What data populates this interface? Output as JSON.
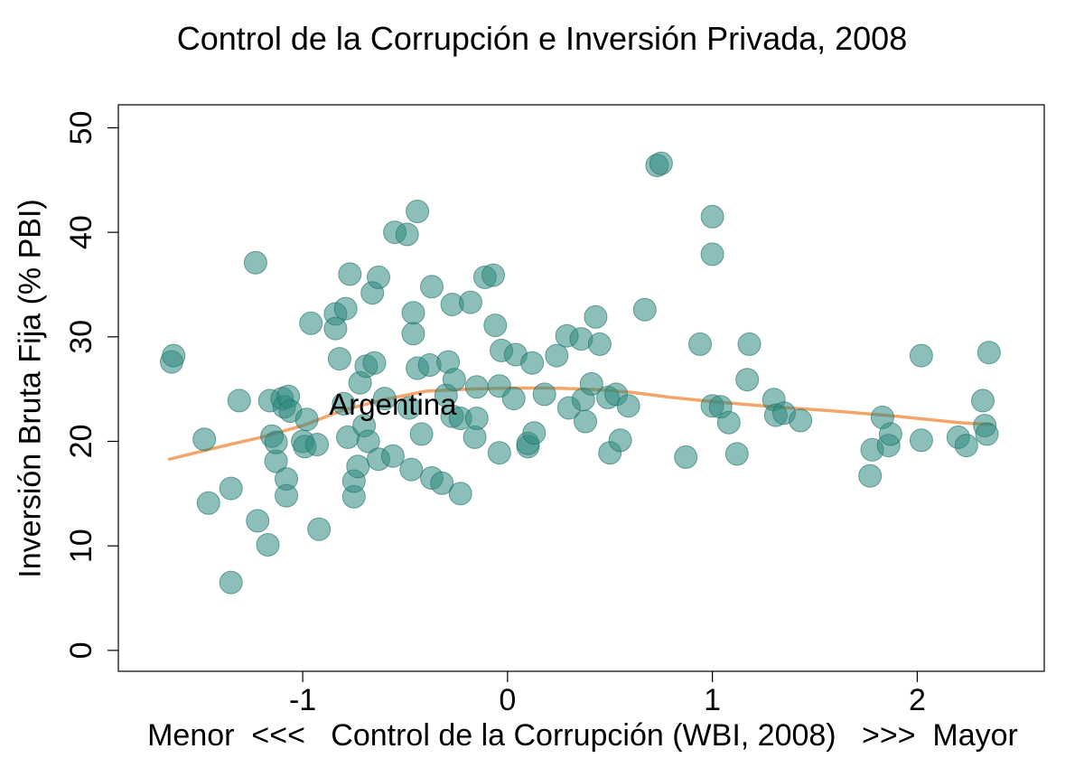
{
  "chart_data": {
    "type": "scatter",
    "title": "Control de la Corrupción e Inversión Privada, 2008",
    "xlabel": "Menor  <<<   Control de la Corrupción (WBI, 2008)   >>>  Mayor",
    "ylabel": "Inversión Bruta Fija (% PBI)",
    "xlim": [
      -1.9,
      2.62
    ],
    "ylim": [
      -2,
      52.2
    ],
    "x_ticks": [
      -1,
      0,
      1,
      2
    ],
    "x_tick_labels": [
      "-1",
      "0",
      "1",
      "2"
    ],
    "y_ticks": [
      0,
      10,
      20,
      30,
      40,
      50
    ],
    "y_tick_labels": [
      "0",
      "10",
      "20",
      "30",
      "40",
      "50"
    ],
    "grid": false,
    "point_color": "#2e8b80",
    "point_edge_color": "#1f6e66",
    "smooth_color": "#f4a56a",
    "annotations": [
      {
        "text": "Argentina",
        "x": -0.56,
        "y": 23.5
      }
    ],
    "points": [
      {
        "x": -1.64,
        "y": 27.6
      },
      {
        "x": -1.63,
        "y": 28.2
      },
      {
        "x": -1.48,
        "y": 20.2
      },
      {
        "x": -1.46,
        "y": 14.1
      },
      {
        "x": -1.35,
        "y": 15.5
      },
      {
        "x": -1.35,
        "y": 6.5
      },
      {
        "x": -1.31,
        "y": 23.9
      },
      {
        "x": -1.23,
        "y": 37.1
      },
      {
        "x": -1.22,
        "y": 12.4
      },
      {
        "x": -1.17,
        "y": 10.1
      },
      {
        "x": -1.16,
        "y": 23.9
      },
      {
        "x": -1.15,
        "y": 20.5
      },
      {
        "x": -1.13,
        "y": 18.1
      },
      {
        "x": -1.13,
        "y": 19.9
      },
      {
        "x": -1.1,
        "y": 24.1
      },
      {
        "x": -1.09,
        "y": 23.3
      },
      {
        "x": -1.08,
        "y": 16.4
      },
      {
        "x": -1.08,
        "y": 14.8
      },
      {
        "x": -1.07,
        "y": 24.3
      },
      {
        "x": -1.06,
        "y": 22.9
      },
      {
        "x": -1.0,
        "y": 20.0
      },
      {
        "x": -0.99,
        "y": 19.5
      },
      {
        "x": -0.98,
        "y": 22.1
      },
      {
        "x": -0.96,
        "y": 31.3
      },
      {
        "x": -0.93,
        "y": 19.7
      },
      {
        "x": -0.92,
        "y": 11.6
      },
      {
        "x": -0.84,
        "y": 32.2
      },
      {
        "x": -0.84,
        "y": 30.8
      },
      {
        "x": -0.82,
        "y": 27.9
      },
      {
        "x": -0.8,
        "y": 23.6
      },
      {
        "x": -0.79,
        "y": 32.7
      },
      {
        "x": -0.78,
        "y": 20.4
      },
      {
        "x": -0.77,
        "y": 36.0
      },
      {
        "x": -0.75,
        "y": 14.7
      },
      {
        "x": -0.75,
        "y": 16.2
      },
      {
        "x": -0.73,
        "y": 17.6
      },
      {
        "x": -0.72,
        "y": 25.6
      },
      {
        "x": -0.7,
        "y": 21.5
      },
      {
        "x": -0.69,
        "y": 27.2
      },
      {
        "x": -0.68,
        "y": 20.0
      },
      {
        "x": -0.66,
        "y": 34.2
      },
      {
        "x": -0.65,
        "y": 27.5
      },
      {
        "x": -0.63,
        "y": 18.3
      },
      {
        "x": -0.63,
        "y": 35.7
      },
      {
        "x": -0.6,
        "y": 24.1
      },
      {
        "x": -0.56,
        "y": 18.6
      },
      {
        "x": -0.55,
        "y": 40.0
      },
      {
        "x": -0.49,
        "y": 39.8
      },
      {
        "x": -0.48,
        "y": 23.2
      },
      {
        "x": -0.47,
        "y": 17.3
      },
      {
        "x": -0.46,
        "y": 30.3
      },
      {
        "x": -0.46,
        "y": 32.3
      },
      {
        "x": -0.44,
        "y": 42.0
      },
      {
        "x": -0.44,
        "y": 27.0
      },
      {
        "x": -0.42,
        "y": 20.7
      },
      {
        "x": -0.38,
        "y": 27.3
      },
      {
        "x": -0.37,
        "y": 16.5
      },
      {
        "x": -0.37,
        "y": 34.8
      },
      {
        "x": -0.32,
        "y": 16.0
      },
      {
        "x": -0.3,
        "y": 24.4
      },
      {
        "x": -0.29,
        "y": 27.6
      },
      {
        "x": -0.27,
        "y": 33.1
      },
      {
        "x": -0.27,
        "y": 22.4
      },
      {
        "x": -0.26,
        "y": 25.9
      },
      {
        "x": -0.23,
        "y": 22.2
      },
      {
        "x": -0.23,
        "y": 15.0
      },
      {
        "x": -0.18,
        "y": 33.3
      },
      {
        "x": -0.16,
        "y": 20.4
      },
      {
        "x": -0.15,
        "y": 22.2
      },
      {
        "x": -0.15,
        "y": 25.2
      },
      {
        "x": -0.11,
        "y": 35.7
      },
      {
        "x": -0.07,
        "y": 35.9
      },
      {
        "x": -0.06,
        "y": 31.1
      },
      {
        "x": -0.04,
        "y": 25.3
      },
      {
        "x": -0.04,
        "y": 18.9
      },
      {
        "x": -0.03,
        "y": 28.7
      },
      {
        "x": 0.03,
        "y": 24.1
      },
      {
        "x": 0.04,
        "y": 28.3
      },
      {
        "x": 0.1,
        "y": 19.5
      },
      {
        "x": 0.1,
        "y": 19.8
      },
      {
        "x": 0.12,
        "y": 27.5
      },
      {
        "x": 0.13,
        "y": 20.8
      },
      {
        "x": 0.18,
        "y": 24.5
      },
      {
        "x": 0.24,
        "y": 28.2
      },
      {
        "x": 0.29,
        "y": 30.1
      },
      {
        "x": 0.3,
        "y": 23.2
      },
      {
        "x": 0.36,
        "y": 29.8
      },
      {
        "x": 0.37,
        "y": 24.0
      },
      {
        "x": 0.38,
        "y": 21.9
      },
      {
        "x": 0.41,
        "y": 25.5
      },
      {
        "x": 0.43,
        "y": 31.9
      },
      {
        "x": 0.45,
        "y": 29.3
      },
      {
        "x": 0.49,
        "y": 24.2
      },
      {
        "x": 0.5,
        "y": 18.9
      },
      {
        "x": 0.53,
        "y": 24.5
      },
      {
        "x": 0.55,
        "y": 20.1
      },
      {
        "x": 0.59,
        "y": 23.4
      },
      {
        "x": 0.67,
        "y": 32.6
      },
      {
        "x": 0.73,
        "y": 46.4
      },
      {
        "x": 0.75,
        "y": 46.6
      },
      {
        "x": 0.87,
        "y": 18.5
      },
      {
        "x": 0.94,
        "y": 29.3
      },
      {
        "x": 1.0,
        "y": 41.5
      },
      {
        "x": 1.0,
        "y": 37.9
      },
      {
        "x": 1.0,
        "y": 23.4
      },
      {
        "x": 1.04,
        "y": 23.3
      },
      {
        "x": 1.08,
        "y": 21.8
      },
      {
        "x": 1.12,
        "y": 18.8
      },
      {
        "x": 1.17,
        "y": 25.9
      },
      {
        "x": 1.18,
        "y": 29.3
      },
      {
        "x": 1.3,
        "y": 24.0
      },
      {
        "x": 1.31,
        "y": 22.5
      },
      {
        "x": 1.35,
        "y": 22.7
      },
      {
        "x": 1.43,
        "y": 22.0
      },
      {
        "x": 1.77,
        "y": 16.7
      },
      {
        "x": 1.78,
        "y": 19.2
      },
      {
        "x": 1.83,
        "y": 22.3
      },
      {
        "x": 1.86,
        "y": 19.6
      },
      {
        "x": 1.87,
        "y": 20.7
      },
      {
        "x": 2.02,
        "y": 28.2
      },
      {
        "x": 2.02,
        "y": 20.1
      },
      {
        "x": 2.2,
        "y": 20.4
      },
      {
        "x": 2.24,
        "y": 19.6
      },
      {
        "x": 2.32,
        "y": 23.9
      },
      {
        "x": 2.33,
        "y": 21.5
      },
      {
        "x": 2.34,
        "y": 20.7
      },
      {
        "x": 2.35,
        "y": 28.5
      }
    ],
    "smooth_line": [
      {
        "x": -1.65,
        "y": 18.3
      },
      {
        "x": -1.4,
        "y": 19.5
      },
      {
        "x": -1.2,
        "y": 20.4
      },
      {
        "x": -1.0,
        "y": 21.5
      },
      {
        "x": -0.8,
        "y": 23.0
      },
      {
        "x": -0.6,
        "y": 24.0
      },
      {
        "x": -0.4,
        "y": 24.8
      },
      {
        "x": -0.2,
        "y": 25.0
      },
      {
        "x": 0.0,
        "y": 25.1
      },
      {
        "x": 0.2,
        "y": 25.1
      },
      {
        "x": 0.4,
        "y": 25.0
      },
      {
        "x": 0.6,
        "y": 24.7
      },
      {
        "x": 0.8,
        "y": 24.2
      },
      {
        "x": 1.0,
        "y": 23.8
      },
      {
        "x": 1.3,
        "y": 23.3
      },
      {
        "x": 1.6,
        "y": 22.9
      },
      {
        "x": 1.9,
        "y": 22.4
      },
      {
        "x": 2.2,
        "y": 21.8
      },
      {
        "x": 2.36,
        "y": 21.6
      }
    ]
  }
}
